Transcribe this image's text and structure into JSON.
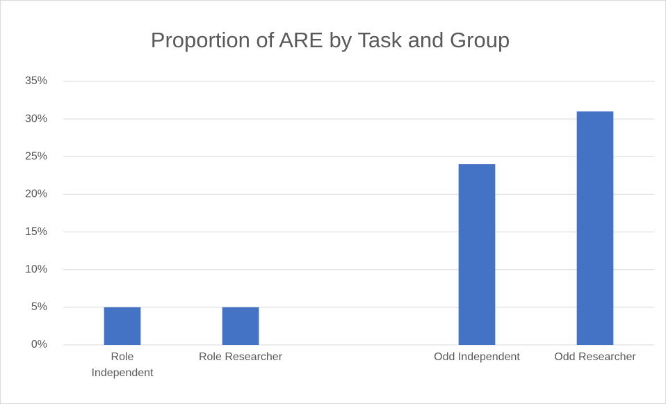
{
  "chart_data": {
    "type": "bar",
    "title": "Proportion of ARE by Task and Group",
    "categories": [
      "Role Independent",
      "Role Researcher",
      null,
      "Odd Independent",
      "Odd Researcher"
    ],
    "values": [
      5,
      5,
      null,
      24,
      31
    ],
    "color": "#4472c4",
    "ylim": [
      0,
      35
    ],
    "yticks": [
      {
        "value": 0,
        "label": "0%"
      },
      {
        "value": 5,
        "label": "5%"
      },
      {
        "value": 10,
        "label": "10%"
      },
      {
        "value": 15,
        "label": "15%"
      },
      {
        "value": 20,
        "label": "20%"
      },
      {
        "value": 25,
        "label": "25%"
      },
      {
        "value": 30,
        "label": "30%"
      },
      {
        "value": 35,
        "label": "35%"
      }
    ],
    "grid": true
  }
}
